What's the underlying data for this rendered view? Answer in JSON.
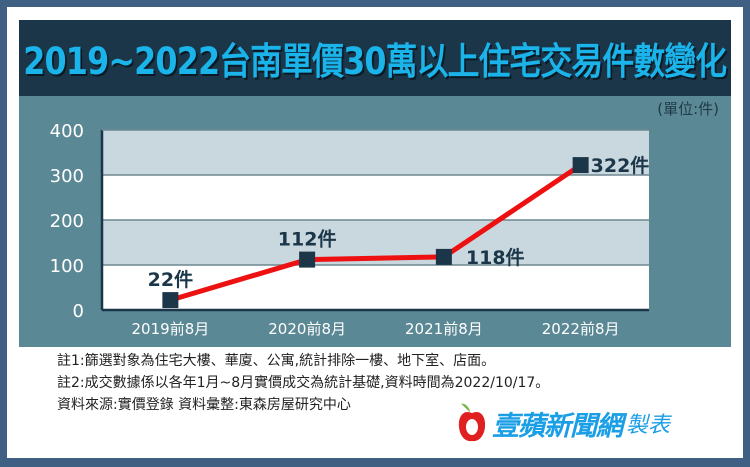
{
  "title": "2019~2022台南單價30萬以上住宅交易件數變化",
  "unit_label": "(單位:件)",
  "notes": [
    "註1:篩選對象為住宅大樓、華廈、公寓,統計排除一樓、地下室、店面。",
    "註2:成交數據係以各年1月~8月實價成交為統計基礎,資料時間為2022/10/17。",
    "資料來源:實價登錄  資料彙整:東森房屋研究中心"
  ],
  "logo": {
    "name": "壹蘋新聞網",
    "suffix": "製表",
    "icon": "apple-icon"
  },
  "colors": {
    "line": "#ee1111",
    "marker": "#1b3649",
    "title": "#1ab3ea",
    "panel": "#5b8895",
    "band": "#c9d7de"
  },
  "chart_data": {
    "type": "line",
    "title": "2019~2022台南單價30萬以上住宅交易件數變化",
    "categories": [
      "2019前8月",
      "2020前8月",
      "2021前8月",
      "2022前8月"
    ],
    "series": [
      {
        "name": "住宅交易件數",
        "values": [
          22,
          112,
          118,
          322
        ]
      }
    ],
    "data_labels": [
      "22件",
      "112件",
      "118件",
      "322件"
    ],
    "xlabel": "",
    "ylabel": "件",
    "ylim": [
      0,
      400
    ],
    "yticks": [
      0,
      100,
      200,
      300,
      400
    ],
    "grid": true,
    "legend": null
  }
}
